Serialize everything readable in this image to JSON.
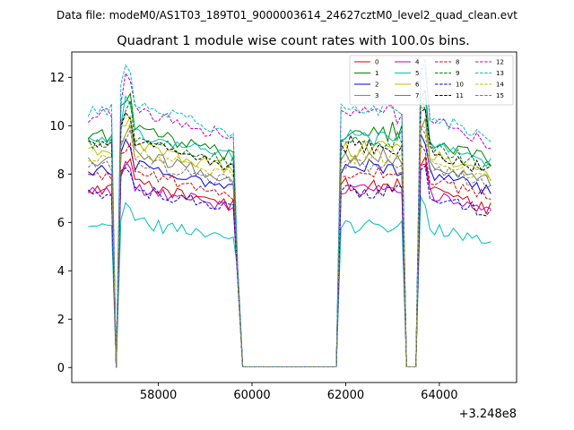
{
  "suptitle": "Data file: modeM0/AS1T03_189T01_9000003614_24627cztM0_level2_quad_clean.evt",
  "chart_data": {
    "type": "line",
    "title": "Quadrant 1 module wise count rates with 100.0s bins.",
    "xlabel": "",
    "ylabel": "",
    "x_offset_label": "+3.248e8",
    "xlim": [
      56150,
      65650
    ],
    "ylim": [
      -0.62,
      13.05
    ],
    "xticks": [
      58000,
      60000,
      62000,
      64000
    ],
    "xtick_labels": [
      "58000",
      "60000",
      "62000",
      "64000"
    ],
    "yticks": [
      0,
      2,
      4,
      6,
      8,
      10,
      12
    ],
    "ytick_labels": [
      "0",
      "2",
      "4",
      "6",
      "8",
      "10",
      "12"
    ],
    "legend_position": "top-right",
    "segments": [
      {
        "x_start": 56500,
        "x_end": 59700,
        "step": 100
      },
      {
        "x_start": 59800,
        "x_end": 61800,
        "step": 100
      },
      {
        "x_start": 61900,
        "x_end": 65100,
        "step": 100
      }
    ],
    "gap_points": [
      [
        57100,
        0.0
      ],
      [
        63350,
        0.0
      ],
      [
        63450,
        0.0
      ]
    ],
    "series": [
      {
        "name": "0",
        "color": "#d40000",
        "dash": "solid",
        "level": 7.3
      },
      {
        "name": "1",
        "color": "#007f00",
        "dash": "solid",
        "level": 9.5
      },
      {
        "name": "2",
        "color": "#0000e0",
        "dash": "solid",
        "level": 8.1
      },
      {
        "name": "3",
        "color": "#00bfbf",
        "dash": "solid",
        "level": 5.8
      },
      {
        "name": "4",
        "color": "#bf00bf",
        "dash": "solid",
        "level": 7.2
      },
      {
        "name": "5",
        "color": "#00bfbf",
        "dash": "solid",
        "level": 9.4
      },
      {
        "name": "6",
        "color": "#bfbf00",
        "dash": "solid",
        "level": 8.9
      },
      {
        "name": "7",
        "color": "#777777",
        "dash": "solid",
        "level": 8.5
      },
      {
        "name": "8",
        "color": "#d40000",
        "dash": "dashed",
        "level": 7.8
      },
      {
        "name": "9",
        "color": "#007f00",
        "dash": "dashed",
        "level": 9.2
      },
      {
        "name": "10",
        "color": "#0000e0",
        "dash": "dashed",
        "level": 7.1
      },
      {
        "name": "11",
        "color": "#000000",
        "dash": "dashed",
        "level": 9.0
      },
      {
        "name": "12",
        "color": "#bf00bf",
        "dash": "dashed",
        "level": 10.3
      },
      {
        "name": "13",
        "color": "#00bfbf",
        "dash": "dashed",
        "level": 10.5
      },
      {
        "name": "14",
        "color": "#bfbf00",
        "dash": "dashed",
        "level": 8.6
      },
      {
        "name": "15",
        "color": "#777777",
        "dash": "dashed",
        "level": 8.3
      }
    ]
  }
}
